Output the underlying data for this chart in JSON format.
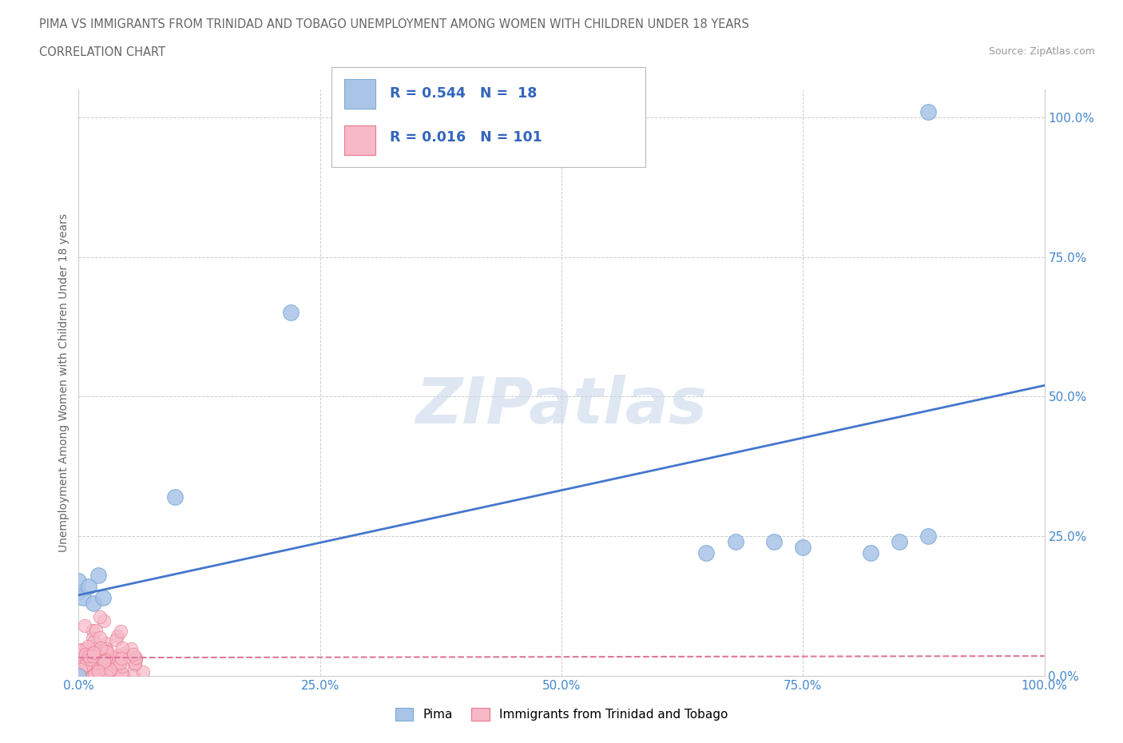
{
  "title_line1": "PIMA VS IMMIGRANTS FROM TRINIDAD AND TOBAGO UNEMPLOYMENT AMONG WOMEN WITH CHILDREN UNDER 18 YEARS",
  "title_line2": "CORRELATION CHART",
  "source": "Source: ZipAtlas.com",
  "ylabel": "Unemployment Among Women with Children Under 18 years",
  "xlim": [
    0,
    1.0
  ],
  "ylim": [
    0,
    1.05
  ],
  "xticks": [
    0.0,
    0.25,
    0.5,
    0.75,
    1.0
  ],
  "yticks": [
    0.0,
    0.25,
    0.5,
    0.75,
    1.0
  ],
  "xticklabels": [
    "0.0%",
    "25.0%",
    "50.0%",
    "75.0%",
    "100.0%"
  ],
  "yticklabels": [
    "0.0%",
    "25.0%",
    "50.0%",
    "75.0%",
    "100.0%"
  ],
  "pima_color": "#aac4e8",
  "pima_edge_color": "#7aaad4",
  "tt_color": "#f7b8c8",
  "tt_edge_color": "#e8788a",
  "pima_R": 0.544,
  "pima_N": 18,
  "tt_R": 0.016,
  "tt_N": 101,
  "pima_line_color": "#4477cc",
  "tt_line_color": "#dd7799",
  "legend_color": "#3366bb",
  "background_color": "#ffffff",
  "grid_color": "#cccccc",
  "watermark_text": "ZIPatlas",
  "watermark_color": "#c8d8ea",
  "title_color": "#666666",
  "axis_tick_color": "#4488cc",
  "pima_scatter_x": [
    0.0,
    0.0,
    0.005,
    0.01,
    0.015,
    0.02,
    0.025,
    0.1,
    0.22,
    0.65,
    0.68,
    0.72,
    0.75,
    0.82,
    0.85,
    0.88,
    0.0,
    0.88
  ],
  "pima_scatter_y": [
    0.15,
    0.17,
    0.14,
    0.16,
    0.13,
    0.18,
    0.14,
    0.32,
    0.65,
    0.22,
    0.24,
    0.24,
    0.23,
    0.22,
    0.24,
    1.01,
    0.0,
    0.25
  ],
  "pima_intercept": 0.145,
  "pima_slope": 0.375,
  "tt_intercept": 0.033,
  "tt_slope": 0.003
}
